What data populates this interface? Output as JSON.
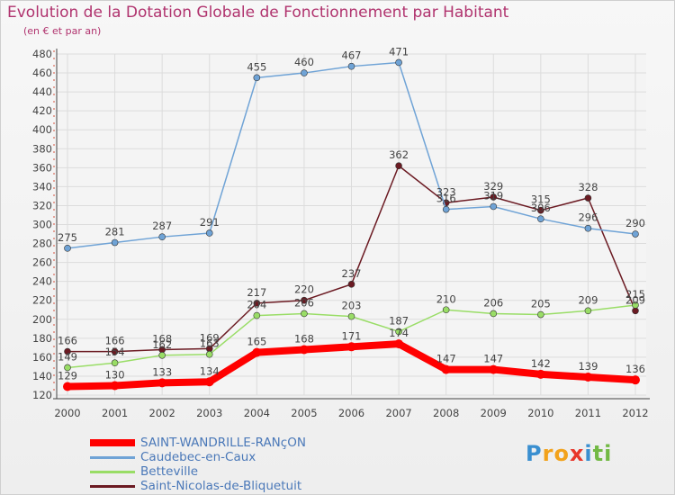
{
  "chart_data": {
    "type": "line",
    "title": "Evolution de la Dotation Globale de Fonctionnement par Habitant",
    "subtitle": "(en € et par an)",
    "x": [
      "2000",
      "2001",
      "2002",
      "2003",
      "2004",
      "2005",
      "2006",
      "2007",
      "2008",
      "2009",
      "2010",
      "2011",
      "2012"
    ],
    "ylim": [
      120,
      480
    ],
    "yticks": [
      120,
      140,
      160,
      180,
      200,
      220,
      240,
      260,
      280,
      300,
      320,
      340,
      360,
      380,
      400,
      420,
      440,
      460,
      480
    ],
    "grid": true,
    "legend_position": "bottom-left",
    "series": [
      {
        "name": "SAINT-WANDRILLE-RANçON",
        "color": "#ff0000",
        "values": [
          129,
          130,
          133,
          134,
          165,
          168,
          171,
          174,
          147,
          147,
          142,
          139,
          136
        ]
      },
      {
        "name": "Caudebec-en-Caux",
        "color": "#6fa3d6",
        "values": [
          275,
          281,
          287,
          291,
          455,
          460,
          467,
          471,
          316,
          319,
          306,
          296,
          290
        ]
      },
      {
        "name": "Betteville",
        "color": "#99dd66",
        "values": [
          149,
          154,
          162,
          163,
          204,
          206,
          203,
          187,
          210,
          206,
          205,
          209,
          215
        ]
      },
      {
        "name": "Saint-Nicolas-de-Bliquetuit",
        "color": "#6b1a22",
        "values": [
          166,
          166,
          168,
          169,
          217,
          220,
          237,
          362,
          323,
          329,
          315,
          328,
          209
        ]
      }
    ]
  },
  "logo": {
    "letters": [
      "P",
      "r",
      "o",
      "x",
      "i",
      "t",
      "i"
    ],
    "colors": [
      "#3a8fd0",
      "#f2a21b",
      "#f2a21b",
      "#e8362a",
      "#3a8fd0",
      "#72b944",
      "#72b944"
    ]
  }
}
